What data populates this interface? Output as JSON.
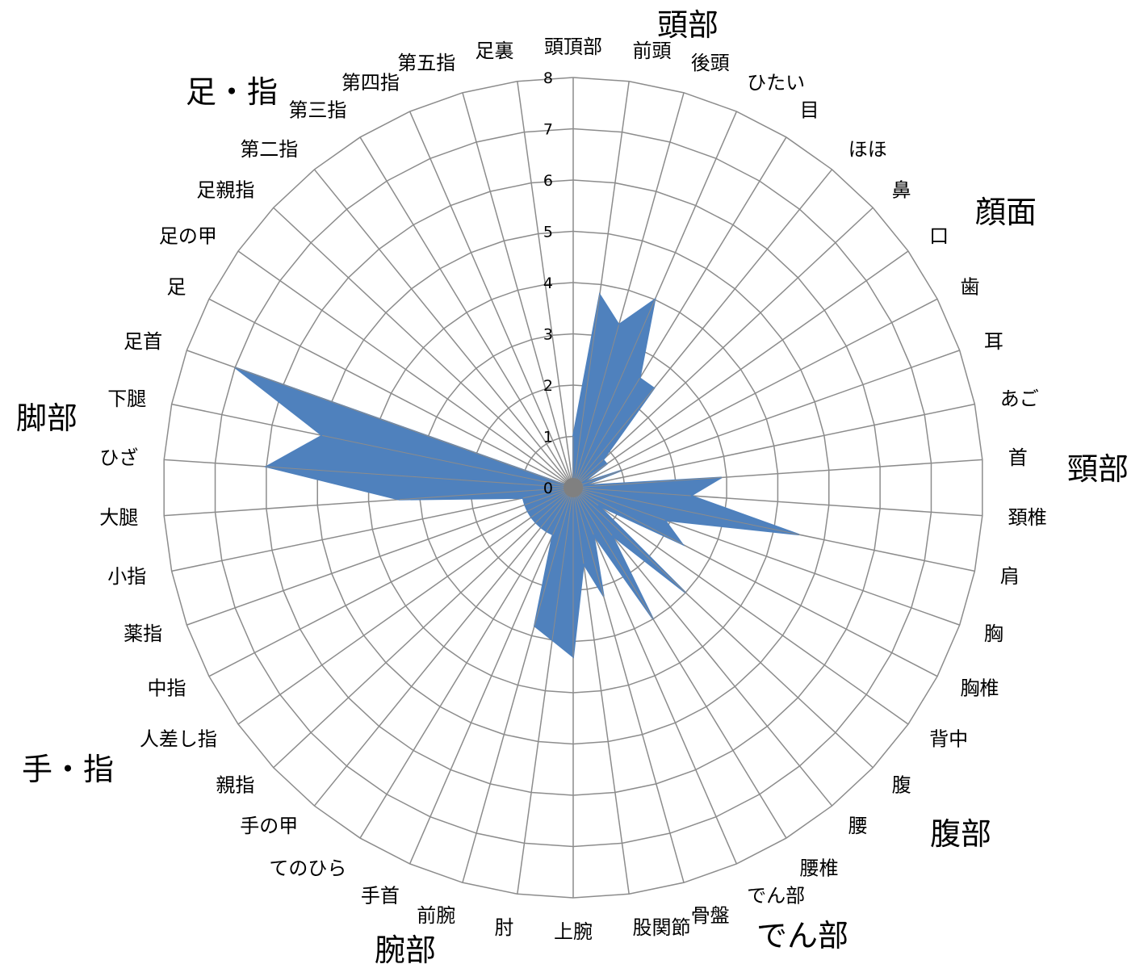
{
  "chart_data": {
    "type": "radar",
    "r_range": [
      0,
      8
    ],
    "r_ticks": [
      "0",
      "1",
      "2",
      "3",
      "4",
      "5",
      "6",
      "7",
      "8"
    ],
    "grid": true,
    "colors": {
      "series": "#4f81bd",
      "grid": "#8c8c8c"
    },
    "categories": [
      "頭頂部",
      "前頭",
      "後頭",
      "ひたい",
      "目",
      "ほほ",
      "鼻",
      "口",
      "歯",
      "耳",
      "あご",
      "首",
      "頚椎",
      "肩",
      "胸",
      "胸椎",
      "背中",
      "腹",
      "腰",
      "腰椎",
      "でん部",
      "骨盤",
      "股関節",
      "上腕",
      "肘",
      "前腕",
      "手首",
      "てのひら",
      "手の甲",
      "親指",
      "人差し指",
      "中指",
      "薬指",
      "小指",
      "大腿",
      "ひざ",
      "下腿",
      "足首",
      "足",
      "足の甲",
      "足親指",
      "第二指",
      "第三指",
      "第四指",
      "第五指",
      "足裏"
    ],
    "values": [
      1.0,
      3.8,
      3.3,
      4.0,
      2.5,
      2.5,
      0.8,
      0.8,
      0.2,
      1.0,
      0.2,
      2.9,
      2.3,
      4.5,
      1.9,
      2.4,
      0.6,
      3.0,
      1.2,
      3.0,
      1.0,
      2.2,
      1.5,
      3.3,
      3.0,
      2.8,
      1.0,
      1.0,
      1.0,
      1.0,
      1.0,
      1.0,
      1.0,
      1.0,
      3.4,
      6.0,
      5.0,
      7.0,
      0.0,
      0.0,
      0.0,
      0.0,
      0.0,
      0.0,
      0.0,
      0.0
    ],
    "groups": [
      "頭部",
      "顔面",
      "頸部",
      "腹部",
      "でん部",
      "腕部",
      "手・指",
      "脚部",
      "足・指"
    ]
  }
}
